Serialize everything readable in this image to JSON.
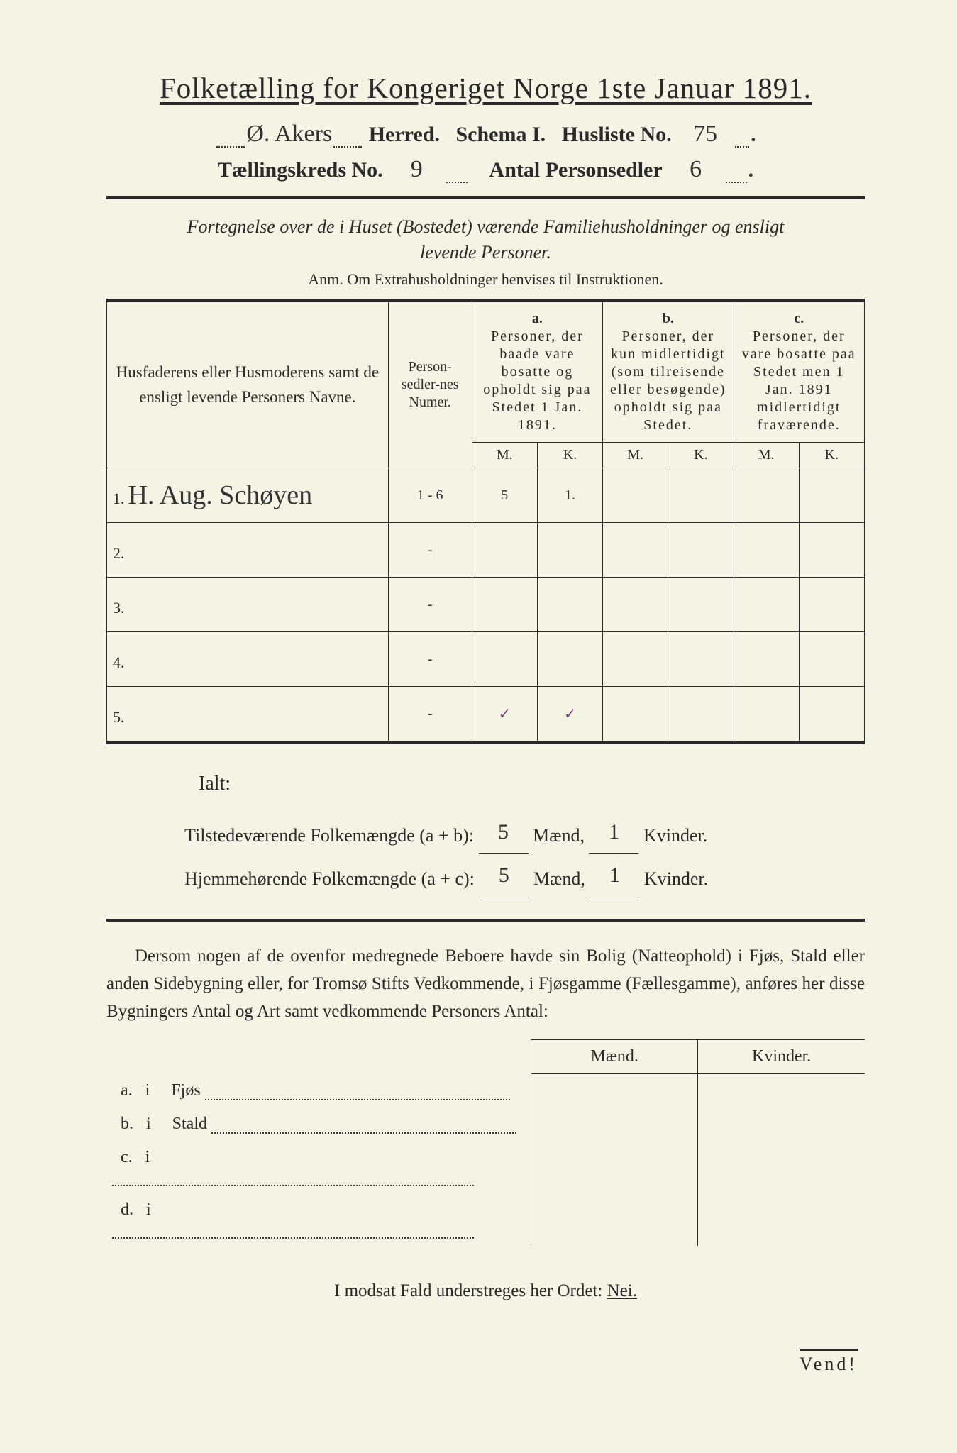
{
  "title": "Folketælling for Kongeriget Norge 1ste Januar 1891.",
  "header": {
    "herred_value": "Ø. Akers",
    "herred_label": " Herred.",
    "schema_label": "Schema I.",
    "husliste_label": "Husliste No.",
    "husliste_value": "75",
    "kreds_label": "Tællingskreds No.",
    "kreds_value": "9",
    "antal_label": "Antal Personsedler",
    "antal_value": "6"
  },
  "subtitle_line1": "Fortegnelse over de i Huset (Bostedet) værende Familiehusholdninger og ensligt",
  "subtitle_line2": "levende Personer.",
  "anm": "Anm.  Om Extrahusholdninger henvises til Instruktionen.",
  "columns": {
    "name": "Husfaderens eller Husmoderens samt de ensligt levende Personers Navne.",
    "num": "Person-sedler-nes Numer.",
    "a_label": "a.",
    "a": "Personer, der baade vare bosatte og opholdt sig paa Stedet 1 Jan. 1891.",
    "b_label": "b.",
    "b": "Personer, der kun midlertidigt (som tilreisende eller besøgende) opholdt sig paa Stedet.",
    "c_label": "c.",
    "c": "Personer, der vare bosatte paa Stedet men 1 Jan. 1891 midlertidigt fraværende.",
    "M": "M.",
    "K": "K."
  },
  "rows": [
    {
      "n": "1.",
      "name": "H. Aug. Schøyen",
      "num": "1 - 6",
      "aM": "5",
      "aK": "1.",
      "bM": "",
      "bK": "",
      "cM": "",
      "cK": ""
    },
    {
      "n": "2.",
      "name": "",
      "num": "-",
      "aM": "",
      "aK": "",
      "bM": "",
      "bK": "",
      "cM": "",
      "cK": ""
    },
    {
      "n": "3.",
      "name": "",
      "num": "-",
      "aM": "",
      "aK": "",
      "bM": "",
      "bK": "",
      "cM": "",
      "cK": ""
    },
    {
      "n": "4.",
      "name": "",
      "num": "-",
      "aM": "",
      "aK": "",
      "bM": "",
      "bK": "",
      "cM": "",
      "cK": ""
    },
    {
      "n": "5.",
      "name": "",
      "num": "-",
      "aM": "✓",
      "aK": "✓",
      "bM": "",
      "bK": "",
      "cM": "",
      "cK": ""
    }
  ],
  "ialt": {
    "label": "Ialt:",
    "line1_prefix": "Tilstedeværende Folkemængde (a + b):",
    "line2_prefix": "Hjemmehørende Folkemængde (a + c):",
    "maend": "Mænd,",
    "kvinder": "Kvinder.",
    "v1m": "5",
    "v1k": "1",
    "v2m": "5",
    "v2k": "1"
  },
  "para": "Dersom nogen af de ovenfor medregnede Beboere havde sin Bolig (Natteophold) i Fjøs, Stald eller anden Sidebygning eller, for Tromsø Stifts Vedkommende, i Fjøsgamme (Fællesgamme), anføres her disse Bygningers Antal og Art samt vedkommende Personers Antal:",
  "sub": {
    "maend": "Mænd.",
    "kvinder": "Kvinder.",
    "rows": [
      {
        "k": "a.",
        "i": "i",
        "label": "Fjøs"
      },
      {
        "k": "b.",
        "i": "i",
        "label": "Stald"
      },
      {
        "k": "c.",
        "i": "i",
        "label": ""
      },
      {
        "k": "d.",
        "i": "i",
        "label": ""
      }
    ]
  },
  "nei_line": "I modsat Fald understreges her Ordet: ",
  "nei": "Nei.",
  "vend": "Vend!",
  "colors": {
    "paper": "#f4f4e4",
    "ink": "#2a2a2a",
    "hand": "#333333",
    "check": "#7a3d7a"
  }
}
